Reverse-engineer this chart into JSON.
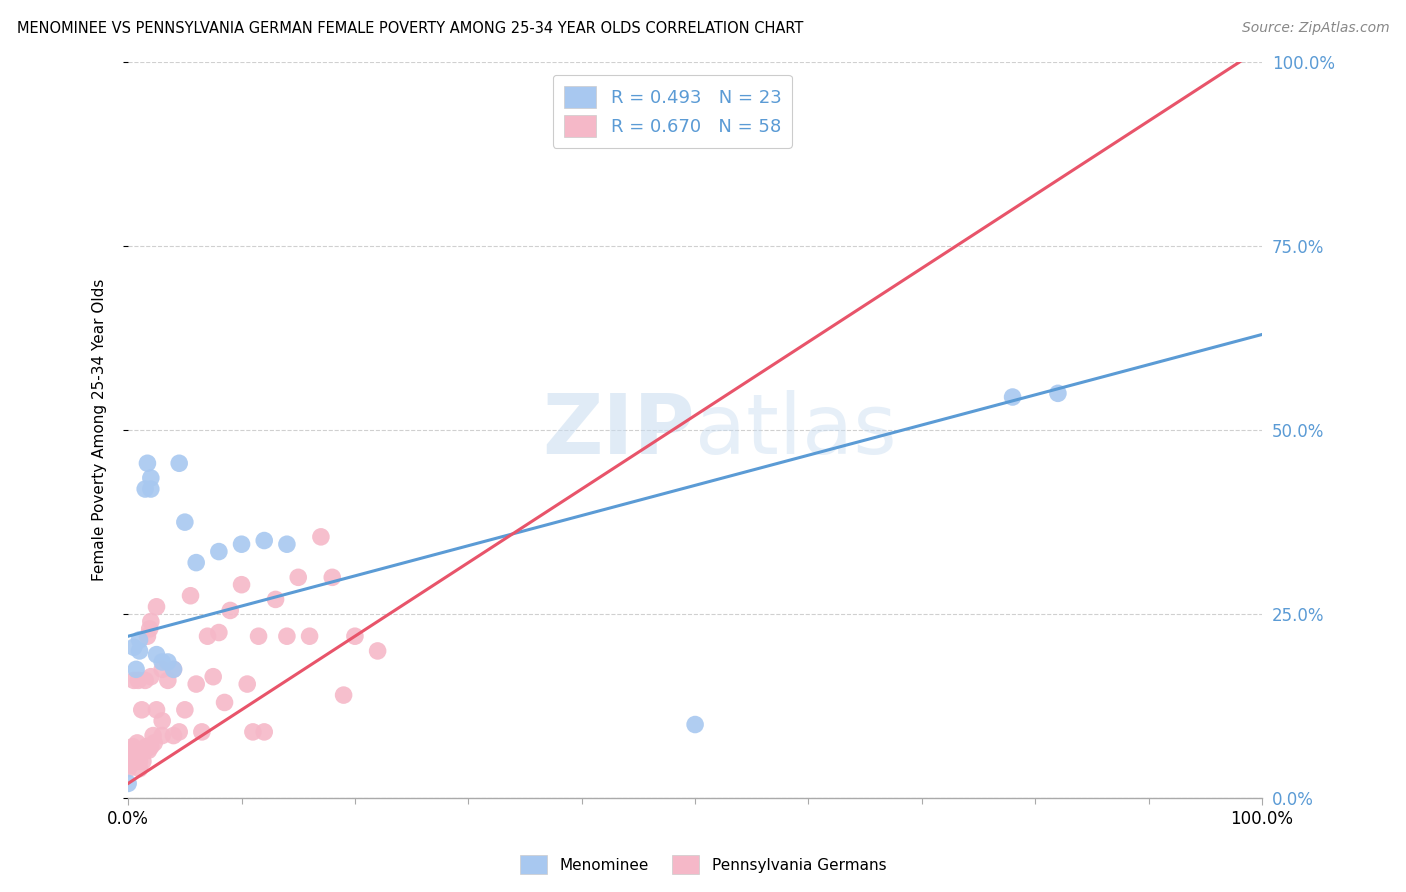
{
  "title": "MENOMINEE VS PENNSYLVANIA GERMAN FEMALE POVERTY AMONG 25-34 YEAR OLDS CORRELATION CHART",
  "source": "Source: ZipAtlas.com",
  "ylabel": "Female Poverty Among 25-34 Year Olds",
  "watermark": "ZIPatlas",
  "menominee_x": [
    0.0,
    0.005,
    0.007,
    0.01,
    0.01,
    0.015,
    0.017,
    0.02,
    0.02,
    0.025,
    0.03,
    0.035,
    0.04,
    0.045,
    0.05,
    0.06,
    0.08,
    0.1,
    0.12,
    0.14,
    0.5,
    0.78,
    0.82
  ],
  "menominee_y": [
    0.02,
    0.205,
    0.175,
    0.2,
    0.215,
    0.42,
    0.455,
    0.42,
    0.435,
    0.195,
    0.185,
    0.185,
    0.175,
    0.455,
    0.375,
    0.32,
    0.335,
    0.345,
    0.35,
    0.345,
    0.1,
    0.545,
    0.55
  ],
  "pa_german_x": [
    0.0,
    0.0,
    0.002,
    0.003,
    0.004,
    0.005,
    0.006,
    0.007,
    0.008,
    0.009,
    0.01,
    0.01,
    0.01,
    0.012,
    0.013,
    0.015,
    0.015,
    0.016,
    0.017,
    0.018,
    0.019,
    0.02,
    0.02,
    0.02,
    0.022,
    0.023,
    0.025,
    0.025,
    0.03,
    0.03,
    0.03,
    0.035,
    0.04,
    0.04,
    0.045,
    0.05,
    0.055,
    0.06,
    0.065,
    0.07,
    0.075,
    0.08,
    0.085,
    0.09,
    0.1,
    0.105,
    0.11,
    0.115,
    0.12,
    0.13,
    0.14,
    0.15,
    0.16,
    0.17,
    0.18,
    0.19,
    0.2,
    0.22
  ],
  "pa_german_y": [
    0.04,
    0.065,
    0.045,
    0.055,
    0.07,
    0.16,
    0.05,
    0.06,
    0.075,
    0.16,
    0.04,
    0.05,
    0.065,
    0.12,
    0.05,
    0.065,
    0.16,
    0.07,
    0.22,
    0.065,
    0.23,
    0.07,
    0.165,
    0.24,
    0.085,
    0.075,
    0.26,
    0.12,
    0.085,
    0.105,
    0.175,
    0.16,
    0.085,
    0.175,
    0.09,
    0.12,
    0.275,
    0.155,
    0.09,
    0.22,
    0.165,
    0.225,
    0.13,
    0.255,
    0.29,
    0.155,
    0.09,
    0.22,
    0.09,
    0.27,
    0.22,
    0.3,
    0.22,
    0.355,
    0.3,
    0.14,
    0.22,
    0.2
  ],
  "menominee_R": 0.493,
  "menominee_N": 23,
  "pa_german_R": 0.67,
  "pa_german_N": 58,
  "blue_scatter_color": "#A8C8F0",
  "pink_scatter_color": "#F5B8C8",
  "blue_line_color": "#5B9BD5",
  "pink_line_color": "#E8546A",
  "legend_text_color": "#5B9BD5",
  "xlim": [
    0.0,
    1.0
  ],
  "ylim": [
    0.0,
    1.0
  ],
  "ytick_labels": [
    "100.0%",
    "75.0%",
    "50.0%",
    "25.0%",
    "0.0%"
  ],
  "ytick_positions": [
    1.0,
    0.75,
    0.5,
    0.25,
    0.0
  ],
  "grid_color": "#D0D0D0",
  "background_color": "#FFFFFF"
}
